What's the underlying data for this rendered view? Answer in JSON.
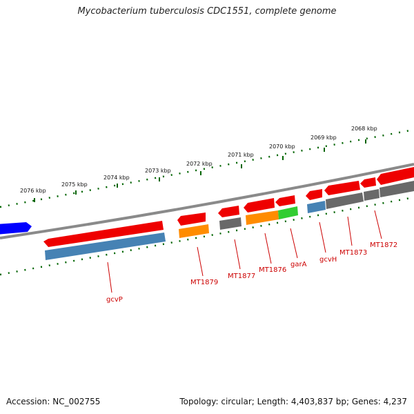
{
  "title": "Mycobacterium tuberculosis CDC1551, complete genome",
  "footer": {
    "accession": "Accession: NC_002755",
    "stats": "Topology: circular; Length: 4,403,837 bp; Genes: 4,237"
  },
  "kbp_labels": [
    "2076 kbp",
    "2075 kbp",
    "2074 kbp",
    "2073 kbp",
    "2072 kbp",
    "2071 kbp",
    "2070 kbp",
    "2069 kbp",
    "2068 kbp"
  ],
  "gene_labels": [
    "gcvP",
    "MT1879",
    "MT1877",
    "MT1876",
    "garA",
    "gcvH",
    "MT1873",
    "MT1872"
  ],
  "colors": {
    "forward_strand": "#ff0000",
    "reverse_gene_a": "#4682b4",
    "reverse_gene_b": "#ff8c00",
    "reverse_gene_c": "#696969",
    "reverse_gene_d": "#32cd32",
    "highlight": "#0000ff",
    "tick": "#006400",
    "backbone": "#808080"
  }
}
